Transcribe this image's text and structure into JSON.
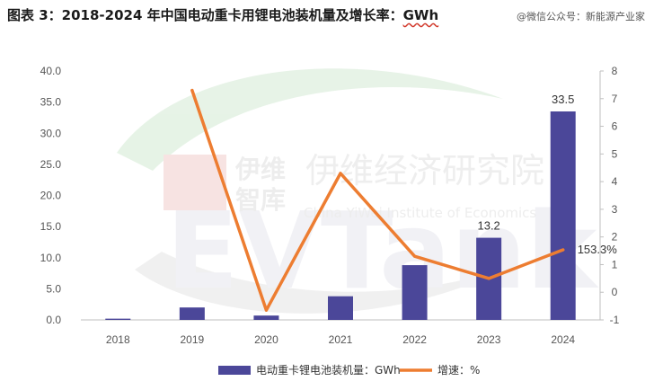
{
  "title": "图表 3：2018-2024 年中国电动重卡用锂电池装机量及增长率：",
  "title_unit": "GWh",
  "source": "@微信公众号：新能源产业家",
  "watermark": {
    "logo": "EVTank",
    "cn_name_1": "伊维",
    "cn_name_2": "智库",
    "cn_full": "伊维经济研究院",
    "en_full": "China YiWei Institute of Economics"
  },
  "colors": {
    "bar": "#4b4799",
    "line": "#ed7d31"
  },
  "chart_data": {
    "type": "bar",
    "categories": [
      "2018",
      "2019",
      "2020",
      "2021",
      "2022",
      "2023",
      "2024"
    ],
    "series": [
      {
        "name": "电动重卡锂电池装机量：GWh",
        "type": "bar",
        "axis": "left",
        "values": [
          0.2,
          2.0,
          0.7,
          3.8,
          8.8,
          13.2,
          33.5
        ]
      },
      {
        "name": "增速：%",
        "type": "line",
        "axis": "right",
        "values": [
          null,
          7.3,
          -0.65,
          4.3,
          1.3,
          0.5,
          1.533
        ]
      }
    ],
    "y_left": {
      "min": 0,
      "max": 40,
      "step": 5,
      "tick_labels": [
        "0.0",
        "5.0",
        "10.0",
        "15.0",
        "20.0",
        "25.0",
        "30.0",
        "35.0",
        "40.0"
      ]
    },
    "y_right": {
      "min": -1,
      "max": 8,
      "step": 1,
      "tick_labels": [
        "-1",
        "0",
        "1",
        "2",
        "3",
        "4",
        "5",
        "6",
        "7",
        "8"
      ]
    },
    "data_labels": [
      {
        "series": 0,
        "index": 5,
        "text": "13.2"
      },
      {
        "series": 0,
        "index": 6,
        "text": "33.5"
      },
      {
        "series": 1,
        "index": 6,
        "text": "153.3%"
      }
    ],
    "legend_position": "bottom",
    "grid": false
  }
}
